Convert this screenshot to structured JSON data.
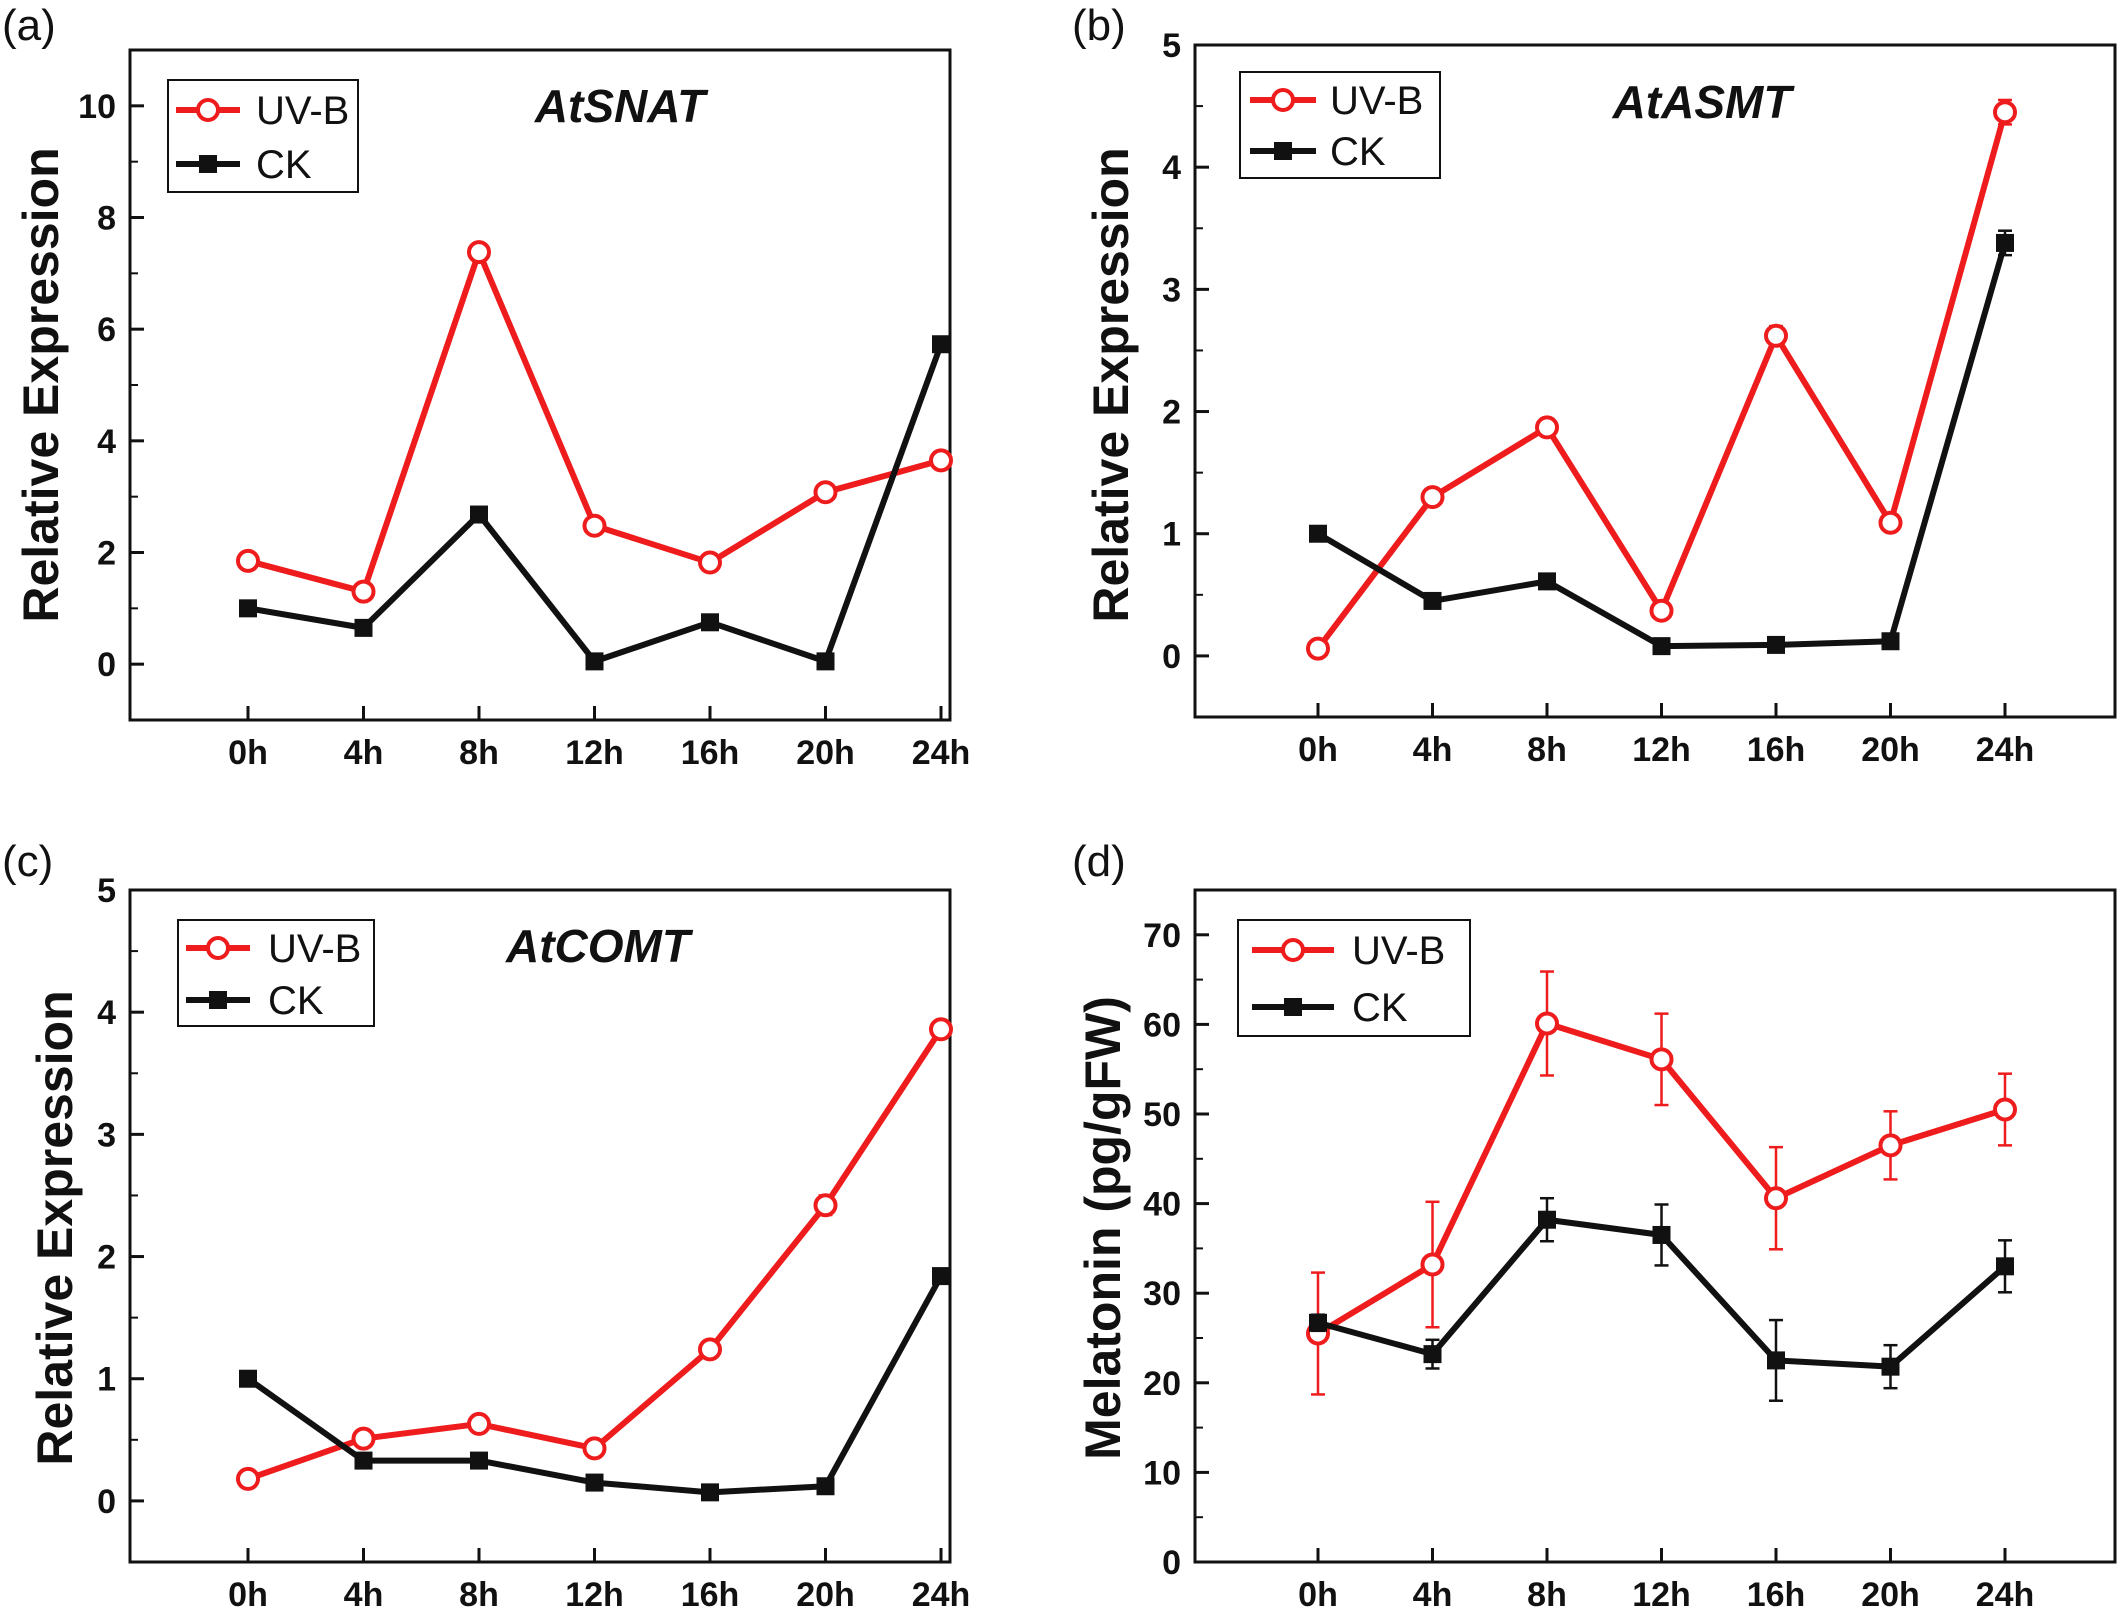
{
  "figure": {
    "panels": [
      "(a)",
      "(b)",
      "(c)",
      "(d)"
    ],
    "colors": {
      "uvb": "#ee1c1c",
      "ck": "#111111",
      "axis": "#111111"
    },
    "markers": {
      "uvb": "open-circle",
      "ck": "filled-square"
    }
  },
  "chart_data": [
    {
      "type": "line",
      "panel": "(a)",
      "title": "AtSNAT",
      "ylabel": "Relative Expression",
      "xlabel": "",
      "categories": [
        "0h",
        "4h",
        "8h",
        "12h",
        "16h",
        "20h",
        "24h"
      ],
      "ylim": [
        -1,
        11
      ],
      "yticks": [
        0,
        2,
        4,
        6,
        8,
        10
      ],
      "legend_position": "top-left",
      "series": [
        {
          "name": "UV-B",
          "values": [
            1.85,
            1.3,
            7.38,
            2.48,
            1.82,
            3.08,
            3.65
          ],
          "errors": [
            0.07,
            0.07,
            0.15,
            0.15,
            0.08,
            0.08,
            0.07
          ]
        },
        {
          "name": "CK",
          "values": [
            1.0,
            0.65,
            2.68,
            0.05,
            0.75,
            0.05,
            5.73
          ],
          "errors": [
            0.04,
            0.04,
            0.06,
            0.03,
            0.04,
            0.03,
            0.06
          ]
        }
      ]
    },
    {
      "type": "line",
      "panel": "(b)",
      "title": "AtASMT",
      "ylabel": "Relative Expression",
      "xlabel": "",
      "categories": [
        "0h",
        "4h",
        "8h",
        "12h",
        "16h",
        "20h",
        "24h"
      ],
      "ylim": [
        -0.5,
        5
      ],
      "yticks": [
        0,
        1,
        2,
        3,
        4,
        5
      ],
      "legend_position": "top-left",
      "series": [
        {
          "name": "UV-B",
          "values": [
            0.06,
            1.3,
            1.87,
            0.37,
            2.62,
            1.09,
            4.45
          ],
          "errors": [
            0.03,
            0.04,
            0.05,
            0.05,
            0.08,
            0.04,
            0.1
          ]
        },
        {
          "name": "CK",
          "values": [
            1.0,
            0.45,
            0.61,
            0.08,
            0.09,
            0.12,
            3.38
          ],
          "errors": [
            0.03,
            0.03,
            0.03,
            0.02,
            0.02,
            0.02,
            0.1
          ]
        }
      ]
    },
    {
      "type": "line",
      "panel": "(c)",
      "title": "AtCOMT",
      "ylabel": "Relative Expression",
      "xlabel": "",
      "categories": [
        "0h",
        "4h",
        "8h",
        "12h",
        "16h",
        "20h",
        "24h"
      ],
      "ylim": [
        -0.5,
        5
      ],
      "yticks": [
        0,
        1,
        2,
        3,
        4,
        5
      ],
      "legend_position": "top-left",
      "series": [
        {
          "name": "UV-B",
          "values": [
            0.18,
            0.51,
            0.63,
            0.43,
            1.24,
            2.42,
            3.86
          ],
          "errors": [
            0.03,
            0.04,
            0.04,
            0.04,
            0.04,
            0.08,
            0.05
          ]
        },
        {
          "name": "CK",
          "values": [
            1.0,
            0.33,
            0.33,
            0.15,
            0.07,
            0.12,
            1.84
          ],
          "errors": [
            0.02,
            0.02,
            0.02,
            0.02,
            0.02,
            0.02,
            0.04
          ]
        }
      ]
    },
    {
      "type": "line",
      "panel": "(d)",
      "title": "",
      "ylabel": "Melatonin (pg/gFW)",
      "xlabel": "",
      "categories": [
        "0h",
        "4h",
        "8h",
        "12h",
        "16h",
        "20h",
        "24h"
      ],
      "ylim": [
        0,
        75
      ],
      "yticks": [
        0,
        10,
        20,
        30,
        40,
        50,
        60,
        70
      ],
      "legend_position": "top-left",
      "series": [
        {
          "name": "UV-B",
          "values": [
            25.5,
            33.2,
            60.1,
            56.1,
            40.6,
            46.5,
            50.5
          ],
          "errors": [
            6.8,
            7.0,
            5.8,
            5.1,
            5.7,
            3.8,
            4.0
          ]
        },
        {
          "name": "CK",
          "values": [
            26.7,
            23.2,
            38.2,
            36.5,
            22.5,
            21.8,
            33.0
          ],
          "errors": [
            0.9,
            1.6,
            2.4,
            3.4,
            4.5,
            2.4,
            2.9
          ]
        }
      ]
    }
  ]
}
